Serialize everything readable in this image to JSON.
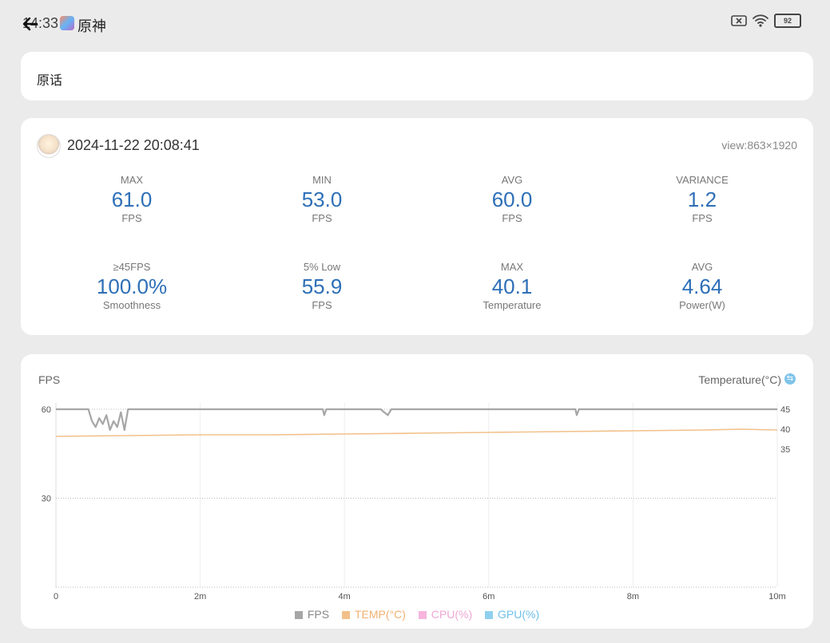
{
  "status_bar": {
    "time": "14:33",
    "app_title": "原神",
    "battery": "92"
  },
  "name_card": {
    "text": "原话"
  },
  "record": {
    "datetime": "2024-11-22 20:08:41",
    "view": "view:863×1920",
    "stats": [
      {
        "label": "MAX",
        "value": "61.0",
        "unit": "FPS"
      },
      {
        "label": "MIN",
        "value": "53.0",
        "unit": "FPS"
      },
      {
        "label": "AVG",
        "value": "60.0",
        "unit": "FPS"
      },
      {
        "label": "VARIANCE",
        "value": "1.2",
        "unit": "FPS"
      },
      {
        "label": "≥45FPS",
        "value": "100.0%",
        "unit": "Smoothness"
      },
      {
        "label": "5% Low",
        "value": "55.9",
        "unit": "FPS"
      },
      {
        "label": "MAX",
        "value": "40.1",
        "unit": "Temperature"
      },
      {
        "label": "AVG",
        "value": "4.64",
        "unit": "Power(W)"
      }
    ]
  },
  "chart": {
    "left_title": "FPS",
    "right_title": "Temperature(°C)",
    "colors": {
      "fps": "#a6a6a6",
      "temp": "#f2c08a",
      "cpu": "#f6b4dc",
      "gpu": "#8fd0ef"
    },
    "legend": [
      "FPS",
      "TEMP(°C)",
      "CPU(%)",
      "GPU(%)"
    ]
  },
  "chart_data": {
    "type": "line",
    "xlabel": "",
    "ylabel": "FPS",
    "y2label": "Temperature(°C)",
    "x_ticks": [
      "0",
      "2m",
      "4m",
      "6m",
      "8m",
      "10m"
    ],
    "y_ticks": [
      "30",
      "60"
    ],
    "y2_ticks": [
      "35",
      "40",
      "45"
    ],
    "xlim": [
      0,
      10
    ],
    "ylim": [
      0,
      60
    ],
    "y2lim": [
      35,
      45
    ],
    "series": [
      {
        "name": "FPS",
        "x": [
          0,
          0.2,
          0.35,
          0.45,
          0.5,
          0.55,
          0.6,
          0.65,
          0.7,
          0.75,
          0.8,
          0.85,
          0.9,
          0.95,
          1.0,
          1.1,
          1.5,
          2.0,
          2.5,
          3.0,
          3.7,
          3.72,
          3.75,
          4.0,
          4.5,
          4.6,
          4.65,
          5.0,
          6.0,
          7.0,
          7.2,
          7.22,
          7.25,
          8.0,
          9.0,
          10.0
        ],
        "values": [
          60,
          60,
          60,
          60,
          56,
          54,
          57,
          55,
          58,
          53,
          56,
          54,
          59,
          53,
          60,
          60,
          60,
          60,
          60,
          60,
          60,
          58,
          60,
          60,
          60,
          58,
          60,
          60,
          60,
          60,
          60,
          58,
          60,
          60,
          60,
          60
        ]
      },
      {
        "name": "TEMP(°C)",
        "x": [
          0,
          1,
          2,
          3,
          4,
          5,
          6,
          7,
          8,
          9,
          9.5,
          10
        ],
        "values": [
          38.2,
          38.4,
          38.6,
          38.6,
          38.8,
          39.0,
          39.2,
          39.4,
          39.6,
          39.8,
          40.0,
          39.8
        ]
      }
    ]
  }
}
